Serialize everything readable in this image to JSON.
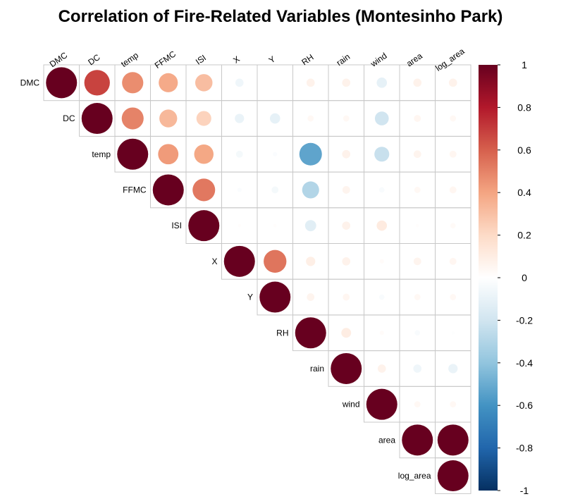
{
  "chart_data": {
    "type": "heatmap",
    "style": "upper-triangle circle correlation plot",
    "title": "Correlation of Fire-Related Variables (Montesinho Park)",
    "variables": [
      "DMC",
      "DC",
      "temp",
      "FFMC",
      "ISI",
      "X",
      "Y",
      "RH",
      "rain",
      "wind",
      "area",
      "log_area"
    ],
    "matrix": [
      [
        1.0,
        0.68,
        0.47,
        0.38,
        0.31,
        -0.07,
        0.0,
        0.07,
        0.07,
        -0.11,
        0.07,
        0.07
      ],
      [
        0.68,
        1.0,
        0.5,
        0.33,
        0.23,
        -0.09,
        -0.11,
        0.04,
        0.04,
        -0.2,
        0.05,
        0.04
      ],
      [
        0.47,
        0.5,
        1.0,
        0.43,
        0.39,
        -0.05,
        -0.02,
        -0.53,
        0.07,
        -0.23,
        0.06,
        0.05
      ],
      [
        0.38,
        0.33,
        0.43,
        1.0,
        0.53,
        -0.02,
        -0.05,
        -0.3,
        0.06,
        -0.03,
        0.04,
        0.05
      ],
      [
        0.31,
        0.23,
        0.39,
        0.53,
        1.0,
        0.01,
        0.01,
        -0.13,
        0.07,
        0.11,
        0.01,
        0.03
      ],
      [
        -0.07,
        -0.09,
        -0.05,
        -0.02,
        0.01,
        1.0,
        0.54,
        0.09,
        0.07,
        0.02,
        0.06,
        0.05
      ],
      [
        0.0,
        -0.11,
        -0.02,
        -0.05,
        0.01,
        0.54,
        1.0,
        0.06,
        0.05,
        -0.03,
        0.04,
        0.04
      ],
      [
        0.07,
        0.04,
        -0.53,
        -0.3,
        -0.13,
        0.09,
        0.06,
        1.0,
        0.1,
        0.02,
        -0.03,
        -0.01
      ],
      [
        0.07,
        0.04,
        0.07,
        0.06,
        0.07,
        0.07,
        0.05,
        0.1,
        1.0,
        0.07,
        -0.07,
        -0.09
      ],
      [
        -0.11,
        -0.2,
        -0.23,
        -0.03,
        0.11,
        0.02,
        -0.03,
        0.02,
        0.07,
        1.0,
        0.04,
        0.04
      ],
      [
        0.07,
        0.05,
        0.06,
        0.04,
        0.01,
        0.06,
        0.04,
        -0.03,
        -0.07,
        0.04,
        1.0,
        1.0
      ],
      [
        0.07,
        0.04,
        0.05,
        0.05,
        0.03,
        0.05,
        0.04,
        -0.01,
        -0.09,
        0.04,
        1.0,
        1.0
      ]
    ],
    "colorbar": {
      "range": [
        -1,
        1
      ],
      "ticks": [
        "1",
        "0.8",
        "0.6",
        "0.4",
        "0.2",
        "0",
        "-0.2",
        "-0.4",
        "-0.6",
        "-0.8",
        "-1"
      ],
      "colors": [
        "#67001F",
        "#B2182B",
        "#D6604D",
        "#F4A582",
        "#FDDBC7",
        "#FFFFFF",
        "#D1E5F0",
        "#92C5DE",
        "#4393C3",
        "#2166AC",
        "#053061"
      ],
      "placement": "right"
    },
    "grid": true
  }
}
